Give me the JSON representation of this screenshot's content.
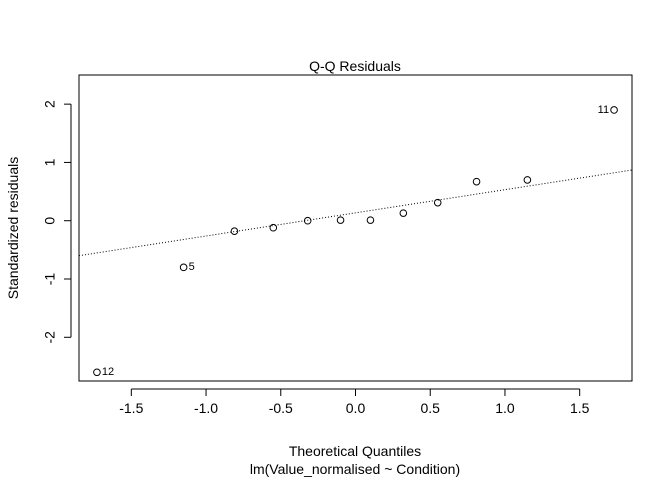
{
  "chart_data": {
    "type": "scatter",
    "title": "Q-Q Residuals",
    "xlabel": "Theoretical Quantiles",
    "subtitle": "lm(Value_normalised ~ Condition)",
    "ylabel": "Standardized residuals",
    "xlim": [
      -1.85,
      1.85
    ],
    "ylim": [
      -2.75,
      2.5
    ],
    "x_ticks": [
      -1.5,
      -1.0,
      -0.5,
      0.0,
      0.5,
      1.0,
      1.5
    ],
    "x_tick_labels": [
      "-1.5",
      "-1.0",
      "-0.5",
      "0.0",
      "0.5",
      "1.0",
      "1.5"
    ],
    "y_ticks": [
      -2,
      -1,
      0,
      1,
      2
    ],
    "y_tick_labels": [
      "-2",
      "-1",
      "0",
      "1",
      "2"
    ],
    "grid": false,
    "points": [
      {
        "x": -1.73,
        "y": -2.6,
        "label": "12"
      },
      {
        "x": -1.15,
        "y": -0.8,
        "label": "5"
      },
      {
        "x": -0.81,
        "y": -0.18,
        "label": ""
      },
      {
        "x": -0.55,
        "y": -0.12,
        "label": ""
      },
      {
        "x": -0.32,
        "y": 0.0,
        "label": ""
      },
      {
        "x": -0.1,
        "y": 0.01,
        "label": ""
      },
      {
        "x": 0.1,
        "y": 0.01,
        "label": ""
      },
      {
        "x": 0.32,
        "y": 0.13,
        "label": ""
      },
      {
        "x": 0.55,
        "y": 0.31,
        "label": ""
      },
      {
        "x": 0.81,
        "y": 0.67,
        "label": ""
      },
      {
        "x": 1.15,
        "y": 0.7,
        "label": ""
      },
      {
        "x": 1.73,
        "y": 1.9,
        "label": "11"
      }
    ],
    "reference_line": {
      "x1": -1.85,
      "y1": -0.6,
      "x2": 1.85,
      "y2": 0.87
    }
  }
}
